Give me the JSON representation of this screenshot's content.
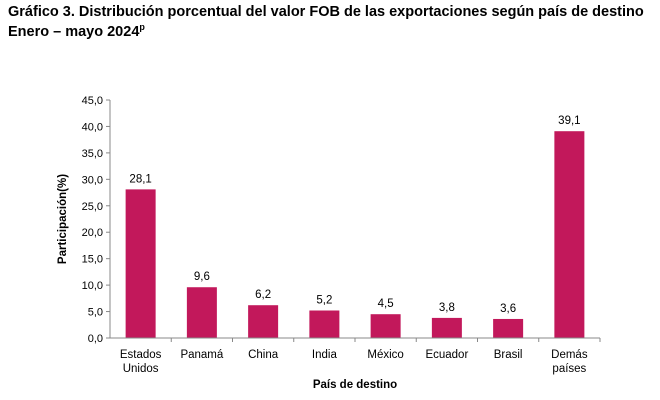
{
  "title": {
    "line1": "Gráfico 3. Distribución porcentual del valor FOB de las exportaciones según país de destino",
    "line2": "Enero – mayo 2024",
    "line2_sup": "p"
  },
  "chart_data": {
    "type": "bar",
    "categories": [
      [
        "Estados",
        "Unidos"
      ],
      [
        "Panamá"
      ],
      [
        "China"
      ],
      [
        "India"
      ],
      [
        "México"
      ],
      [
        "Ecuador"
      ],
      [
        "Brasil"
      ],
      [
        "Demás",
        "países"
      ]
    ],
    "values": [
      28.1,
      9.6,
      6.2,
      5.2,
      4.5,
      3.8,
      3.6,
      39.1
    ],
    "value_labels": [
      "28,1",
      "9,6",
      "6,2",
      "5,2",
      "4,5",
      "3,8",
      "3,6",
      "39,1"
    ],
    "yticks": [
      0,
      5,
      10,
      15,
      20,
      25,
      30,
      35,
      40,
      45
    ],
    "ytick_labels": [
      "0,0",
      "5,0",
      "10,0",
      "15,0",
      "20,0",
      "25,0",
      "30,0",
      "35,0",
      "40,0",
      "45,0"
    ],
    "ylim": [
      0,
      45
    ],
    "xlabel": "País de destino",
    "ylabel": "Participación(%)",
    "bar_color": "#c2185b",
    "grid": false
  }
}
